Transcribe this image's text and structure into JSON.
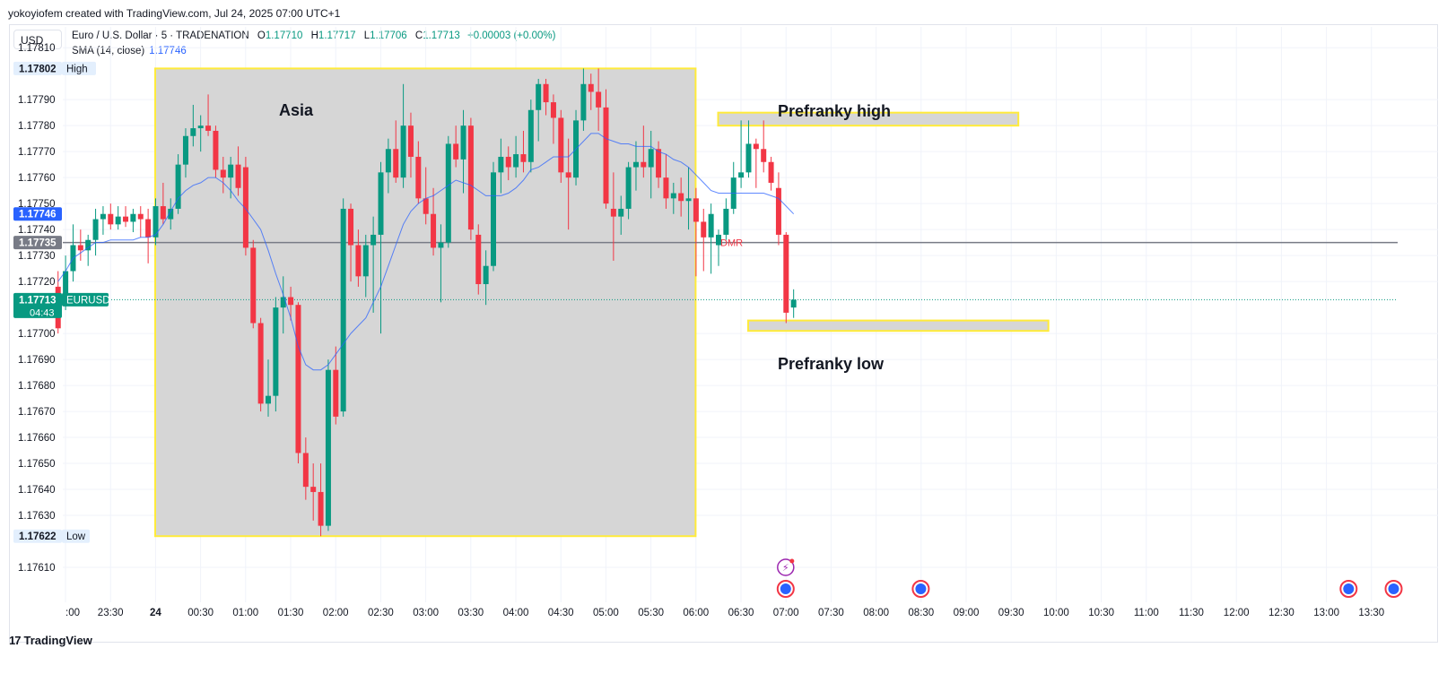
{
  "header": {
    "credit": "yokoyiofem created with TradingView.com, Jul 24, 2025 07:00 UTC+1"
  },
  "currency_button": "USD",
  "legend": {
    "title": "Euro / U.S. Dollar · 5 · TRADENATION",
    "o_label": "O",
    "o_val": "1.17710",
    "h_label": "H",
    "h_val": "1.17717",
    "l_label": "L",
    "l_val": "1.17706",
    "c_label": "C",
    "c_val": "1.17713",
    "change": "+0.00003 (+0.00%)",
    "sma_label": "SMA (14, close)",
    "sma_val": "1.17746"
  },
  "footer": {
    "brand": "TradingView",
    "mark": "17"
  },
  "colors": {
    "up": "#089981",
    "down": "#f23645",
    "sma": "#2962ff",
    "zone_fill": "#d6d6d6",
    "zone_border": "#ffeb3b",
    "hline": "#787b86",
    "price_tag": "#089981",
    "sma_tag": "#2962ff",
    "hline_tag": "#787b86"
  },
  "chart_data": {
    "type": "candlestick",
    "symbol": "EURUSD",
    "interval": "5",
    "y_ticks": [
      "1.17810",
      "1.17790",
      "1.17780",
      "1.17770",
      "1.17760",
      "1.17750",
      "1.17740",
      "1.17730",
      "1.17720",
      "1.17700",
      "1.17690",
      "1.17680",
      "1.17670",
      "1.17660",
      "1.17650",
      "1.17640",
      "1.17630",
      "1.17610"
    ],
    "y_range": [
      1.176,
      1.17818
    ],
    "x_ticks": [
      ":00",
      "23:30",
      "24",
      "00:30",
      "01:00",
      "01:30",
      "02:00",
      "02:30",
      "03:00",
      "03:30",
      "04:00",
      "04:30",
      "05:00",
      "05:30",
      "06:00",
      "06:30",
      "07:00",
      "07:30",
      "08:00",
      "08:30",
      "09:00",
      "09:30",
      "10:00",
      "10:30",
      "11:00",
      "11:30",
      "12:00",
      "12:30",
      "13:00",
      "13:30"
    ],
    "x_tick_bold": "24",
    "candles": [
      {
        "t": "22:55",
        "o": 1.17718,
        "h": 1.17724,
        "l": 1.177,
        "c": 1.17702
      },
      {
        "t": "23:00",
        "o": 1.17714,
        "h": 1.1773,
        "l": 1.17709,
        "c": 1.17724
      },
      {
        "t": "23:05",
        "o": 1.17724,
        "h": 1.17742,
        "l": 1.1772,
        "c": 1.17734
      },
      {
        "t": "23:10",
        "o": 1.17734,
        "h": 1.1774,
        "l": 1.17728,
        "c": 1.17732
      },
      {
        "t": "23:15",
        "o": 1.17732,
        "h": 1.17738,
        "l": 1.17726,
        "c": 1.17736
      },
      {
        "t": "23:20",
        "o": 1.17736,
        "h": 1.17748,
        "l": 1.1773,
        "c": 1.17744
      },
      {
        "t": "23:25",
        "o": 1.17744,
        "h": 1.17749,
        "l": 1.17738,
        "c": 1.17746
      },
      {
        "t": "23:30",
        "o": 1.17746,
        "h": 1.1775,
        "l": 1.1774,
        "c": 1.17742
      },
      {
        "t": "23:35",
        "o": 1.17742,
        "h": 1.17749,
        "l": 1.1774,
        "c": 1.17745
      },
      {
        "t": "23:40",
        "o": 1.17745,
        "h": 1.17749,
        "l": 1.17741,
        "c": 1.17743
      },
      {
        "t": "23:45",
        "o": 1.17743,
        "h": 1.17748,
        "l": 1.17739,
        "c": 1.17746
      },
      {
        "t": "23:50",
        "o": 1.17746,
        "h": 1.17749,
        "l": 1.17737,
        "c": 1.17744
      },
      {
        "t": "23:55",
        "o": 1.17744,
        "h": 1.17748,
        "l": 1.17727,
        "c": 1.17737
      },
      {
        "t": "00:00",
        "o": 1.17737,
        "h": 1.17752,
        "l": 1.17734,
        "c": 1.17749
      },
      {
        "t": "00:05",
        "o": 1.17749,
        "h": 1.17758,
        "l": 1.17742,
        "c": 1.17744
      },
      {
        "t": "00:10",
        "o": 1.17744,
        "h": 1.17752,
        "l": 1.1774,
        "c": 1.17748
      },
      {
        "t": "00:15",
        "o": 1.17748,
        "h": 1.17769,
        "l": 1.17746,
        "c": 1.17765
      },
      {
        "t": "00:20",
        "o": 1.17765,
        "h": 1.17779,
        "l": 1.1776,
        "c": 1.17776
      },
      {
        "t": "00:25",
        "o": 1.17776,
        "h": 1.17788,
        "l": 1.17772,
        "c": 1.17779
      },
      {
        "t": "00:30",
        "o": 1.17779,
        "h": 1.17784,
        "l": 1.1777,
        "c": 1.1778
      },
      {
        "t": "00:35",
        "o": 1.1778,
        "h": 1.17792,
        "l": 1.17776,
        "c": 1.17778
      },
      {
        "t": "00:40",
        "o": 1.17778,
        "h": 1.1778,
        "l": 1.1776,
        "c": 1.17763
      },
      {
        "t": "00:45",
        "o": 1.17763,
        "h": 1.17768,
        "l": 1.17754,
        "c": 1.1776
      },
      {
        "t": "00:50",
        "o": 1.1776,
        "h": 1.17768,
        "l": 1.17752,
        "c": 1.17765
      },
      {
        "t": "00:55",
        "o": 1.17765,
        "h": 1.17772,
        "l": 1.17753,
        "c": 1.17756
      },
      {
        "t": "01:00",
        "o": 1.17764,
        "h": 1.17768,
        "l": 1.1773,
        "c": 1.17733
      },
      {
        "t": "01:05",
        "o": 1.17733,
        "h": 1.17736,
        "l": 1.17702,
        "c": 1.17704
      },
      {
        "t": "01:10",
        "o": 1.17704,
        "h": 1.17706,
        "l": 1.1767,
        "c": 1.17673
      },
      {
        "t": "01:15",
        "o": 1.17673,
        "h": 1.1769,
        "l": 1.17668,
        "c": 1.17676
      },
      {
        "t": "01:20",
        "o": 1.17676,
        "h": 1.17714,
        "l": 1.1767,
        "c": 1.1771
      },
      {
        "t": "01:25",
        "o": 1.1771,
        "h": 1.17722,
        "l": 1.177,
        "c": 1.17714
      },
      {
        "t": "01:30",
        "o": 1.17714,
        "h": 1.17718,
        "l": 1.17705,
        "c": 1.17711
      },
      {
        "t": "01:35",
        "o": 1.17711,
        "h": 1.17712,
        "l": 1.1765,
        "c": 1.17654
      },
      {
        "t": "01:40",
        "o": 1.17654,
        "h": 1.1766,
        "l": 1.17636,
        "c": 1.17641
      },
      {
        "t": "01:45",
        "o": 1.17641,
        "h": 1.1765,
        "l": 1.17628,
        "c": 1.17639
      },
      {
        "t": "01:50",
        "o": 1.17639,
        "h": 1.1765,
        "l": 1.17622,
        "c": 1.17626
      },
      {
        "t": "01:55",
        "o": 1.17626,
        "h": 1.1769,
        "l": 1.17624,
        "c": 1.17686
      },
      {
        "t": "02:00",
        "o": 1.17686,
        "h": 1.17695,
        "l": 1.17665,
        "c": 1.17668
      },
      {
        "t": "02:05",
        "o": 1.1767,
        "h": 1.17752,
        "l": 1.17668,
        "c": 1.17748
      },
      {
        "t": "02:10",
        "o": 1.17748,
        "h": 1.1775,
        "l": 1.1772,
        "c": 1.17734
      },
      {
        "t": "02:15",
        "o": 1.17734,
        "h": 1.1774,
        "l": 1.17718,
        "c": 1.17722
      },
      {
        "t": "02:20",
        "o": 1.17722,
        "h": 1.17738,
        "l": 1.17714,
        "c": 1.17734
      },
      {
        "t": "02:25",
        "o": 1.17734,
        "h": 1.17745,
        "l": 1.17708,
        "c": 1.17738
      },
      {
        "t": "02:30",
        "o": 1.17738,
        "h": 1.17766,
        "l": 1.177,
        "c": 1.17762
      },
      {
        "t": "02:35",
        "o": 1.17762,
        "h": 1.17775,
        "l": 1.17754,
        "c": 1.17771
      },
      {
        "t": "02:40",
        "o": 1.17771,
        "h": 1.17782,
        "l": 1.17758,
        "c": 1.1776
      },
      {
        "t": "02:45",
        "o": 1.1776,
        "h": 1.17796,
        "l": 1.17756,
        "c": 1.1778
      },
      {
        "t": "02:50",
        "o": 1.1778,
        "h": 1.17785,
        "l": 1.1776,
        "c": 1.17768
      },
      {
        "t": "02:55",
        "o": 1.17768,
        "h": 1.17774,
        "l": 1.1775,
        "c": 1.17752
      },
      {
        "t": "03:00",
        "o": 1.17752,
        "h": 1.17764,
        "l": 1.17742,
        "c": 1.17746
      },
      {
        "t": "03:05",
        "o": 1.17746,
        "h": 1.17756,
        "l": 1.1773,
        "c": 1.17733
      },
      {
        "t": "03:10",
        "o": 1.17733,
        "h": 1.17742,
        "l": 1.17712,
        "c": 1.17735
      },
      {
        "t": "03:15",
        "o": 1.17735,
        "h": 1.17776,
        "l": 1.17733,
        "c": 1.17773
      },
      {
        "t": "03:20",
        "o": 1.17773,
        "h": 1.1778,
        "l": 1.17764,
        "c": 1.17767
      },
      {
        "t": "03:25",
        "o": 1.17767,
        "h": 1.17786,
        "l": 1.17754,
        "c": 1.1778
      },
      {
        "t": "03:30",
        "o": 1.1778,
        "h": 1.17783,
        "l": 1.17736,
        "c": 1.1774
      },
      {
        "t": "03:35",
        "o": 1.17738,
        "h": 1.17742,
        "l": 1.17715,
        "c": 1.17719
      },
      {
        "t": "03:40",
        "o": 1.17719,
        "h": 1.17732,
        "l": 1.17711,
        "c": 1.17726
      },
      {
        "t": "03:45",
        "o": 1.17726,
        "h": 1.17766,
        "l": 1.17724,
        "c": 1.17762
      },
      {
        "t": "03:50",
        "o": 1.17762,
        "h": 1.17775,
        "l": 1.17754,
        "c": 1.17768
      },
      {
        "t": "03:55",
        "o": 1.17768,
        "h": 1.17772,
        "l": 1.17759,
        "c": 1.17764
      },
      {
        "t": "04:00",
        "o": 1.17764,
        "h": 1.17776,
        "l": 1.1776,
        "c": 1.17769
      },
      {
        "t": "04:05",
        "o": 1.17769,
        "h": 1.17778,
        "l": 1.17762,
        "c": 1.17766
      },
      {
        "t": "04:10",
        "o": 1.17766,
        "h": 1.1779,
        "l": 1.17762,
        "c": 1.17786
      },
      {
        "t": "04:15",
        "o": 1.17786,
        "h": 1.17798,
        "l": 1.17774,
        "c": 1.17796
      },
      {
        "t": "04:20",
        "o": 1.17796,
        "h": 1.17798,
        "l": 1.17784,
        "c": 1.17789
      },
      {
        "t": "04:25",
        "o": 1.17789,
        "h": 1.17792,
        "l": 1.17773,
        "c": 1.17783
      },
      {
        "t": "04:30",
        "o": 1.17783,
        "h": 1.17786,
        "l": 1.17758,
        "c": 1.17762
      },
      {
        "t": "04:35",
        "o": 1.17762,
        "h": 1.17775,
        "l": 1.1774,
        "c": 1.1776
      },
      {
        "t": "04:40",
        "o": 1.1776,
        "h": 1.17786,
        "l": 1.17757,
        "c": 1.17782
      },
      {
        "t": "04:45",
        "o": 1.17782,
        "h": 1.17802,
        "l": 1.17778,
        "c": 1.17796
      },
      {
        "t": "04:50",
        "o": 1.17796,
        "h": 1.178,
        "l": 1.17786,
        "c": 1.17793
      },
      {
        "t": "04:55",
        "o": 1.17793,
        "h": 1.17802,
        "l": 1.17778,
        "c": 1.17787
      },
      {
        "t": "05:00",
        "o": 1.17787,
        "h": 1.17794,
        "l": 1.17748,
        "c": 1.1775
      },
      {
        "t": "05:05",
        "o": 1.17748,
        "h": 1.17762,
        "l": 1.17728,
        "c": 1.17745
      },
      {
        "t": "05:10",
        "o": 1.17745,
        "h": 1.17753,
        "l": 1.17738,
        "c": 1.17748
      },
      {
        "t": "05:15",
        "o": 1.17748,
        "h": 1.17766,
        "l": 1.17744,
        "c": 1.17764
      },
      {
        "t": "05:20",
        "o": 1.17764,
        "h": 1.17774,
        "l": 1.17755,
        "c": 1.17766
      },
      {
        "t": "05:25",
        "o": 1.17766,
        "h": 1.1778,
        "l": 1.1776,
        "c": 1.17764
      },
      {
        "t": "05:30",
        "o": 1.17764,
        "h": 1.17778,
        "l": 1.17752,
        "c": 1.17771
      },
      {
        "t": "05:35",
        "o": 1.17771,
        "h": 1.17774,
        "l": 1.17756,
        "c": 1.1776
      },
      {
        "t": "05:40",
        "o": 1.1776,
        "h": 1.17769,
        "l": 1.17748,
        "c": 1.17752
      },
      {
        "t": "05:45",
        "o": 1.17752,
        "h": 1.17758,
        "l": 1.17746,
        "c": 1.17754
      },
      {
        "t": "05:50",
        "o": 1.17754,
        "h": 1.1776,
        "l": 1.17745,
        "c": 1.17751
      },
      {
        "t": "05:55",
        "o": 1.17751,
        "h": 1.17764,
        "l": 1.1774,
        "c": 1.17752
      },
      {
        "t": "06:00",
        "o": 1.17752,
        "h": 1.17756,
        "l": 1.17722,
        "c": 1.17743
      },
      {
        "t": "06:05",
        "o": 1.17743,
        "h": 1.17748,
        "l": 1.17724,
        "c": 1.17737
      },
      {
        "t": "06:10",
        "o": 1.17737,
        "h": 1.1775,
        "l": 1.17723,
        "c": 1.17746
      },
      {
        "t": "06:15",
        "o": 1.17734,
        "h": 1.1774,
        "l": 1.17726,
        "c": 1.17738
      },
      {
        "t": "06:20",
        "o": 1.17738,
        "h": 1.17752,
        "l": 1.17736,
        "c": 1.17748
      },
      {
        "t": "06:25",
        "o": 1.17748,
        "h": 1.17766,
        "l": 1.17746,
        "c": 1.1776
      },
      {
        "t": "06:30",
        "o": 1.1776,
        "h": 1.17782,
        "l": 1.17756,
        "c": 1.17762
      },
      {
        "t": "06:35",
        "o": 1.17762,
        "h": 1.17782,
        "l": 1.1776,
        "c": 1.17773
      },
      {
        "t": "06:40",
        "o": 1.17773,
        "h": 1.17775,
        "l": 1.17756,
        "c": 1.17771
      },
      {
        "t": "06:45",
        "o": 1.17771,
        "h": 1.17782,
        "l": 1.17762,
        "c": 1.17766
      },
      {
        "t": "06:50",
        "o": 1.17766,
        "h": 1.17768,
        "l": 1.17755,
        "c": 1.17758
      },
      {
        "t": "06:55",
        "o": 1.17756,
        "h": 1.17762,
        "l": 1.17734,
        "c": 1.17738
      },
      {
        "t": "07:00",
        "o": 1.17738,
        "h": 1.17739,
        "l": 1.17704,
        "c": 1.17708
      },
      {
        "t": "07:05",
        "o": 1.1771,
        "h": 1.17717,
        "l": 1.17706,
        "c": 1.17713
      }
    ],
    "sma": {
      "name": "SMA (14, close)",
      "values": [
        1.1772,
        1.17724,
        1.17729,
        1.17731,
        1.17733,
        1.17735,
        1.17735,
        1.17736,
        1.17736,
        1.17736,
        1.17736,
        1.17737,
        1.17737,
        1.17738,
        1.17742,
        1.17747,
        1.17752,
        1.17755,
        1.17757,
        1.17758,
        1.1776,
        1.1776,
        1.17758,
        1.17755,
        1.17751,
        1.17748,
        1.17744,
        1.1774,
        1.17732,
        1.17723,
        1.17715,
        1.17706,
        1.17695,
        1.17688,
        1.17686,
        1.17686,
        1.17688,
        1.17692,
        1.17696,
        1.177,
        1.17703,
        1.17706,
        1.17712,
        1.17718,
        1.17726,
        1.17734,
        1.17742,
        1.17747,
        1.1775,
        1.17752,
        1.17753,
        1.17755,
        1.17757,
        1.17759,
        1.17758,
        1.17757,
        1.17755,
        1.17753,
        1.17753,
        1.17753,
        1.17754,
        1.17756,
        1.17759,
        1.17763,
        1.17764,
        1.17766,
        1.17768,
        1.17768,
        1.17768,
        1.17771,
        1.17774,
        1.17777,
        1.17777,
        1.17775,
        1.17774,
        1.17773,
        1.17773,
        1.17772,
        1.17772,
        1.17772,
        1.1777,
        1.17769,
        1.17767,
        1.17766,
        1.17764,
        1.17761,
        1.17758,
        1.17755,
        1.17754,
        1.17754,
        1.17754,
        1.17754,
        1.17754,
        1.17754,
        1.17754,
        1.17753,
        1.17752,
        1.17749,
        1.17746
      ]
    },
    "zones": [
      {
        "label": "Asia",
        "from": "00:00",
        "to": "06:00",
        "top": 1.17802,
        "bottom": 1.17622
      },
      {
        "label": "Prefranky high",
        "from": "06:15",
        "to": "09:35",
        "top": 1.17785,
        "bottom": 1.1778
      },
      {
        "label": "Prefranky low",
        "from": "06:35",
        "to": "09:55",
        "top": 1.17705,
        "bottom": 1.17701
      }
    ],
    "hline": {
      "label": "DMR",
      "value": 1.17735
    },
    "price_tags": {
      "high": {
        "value": "1.17802",
        "label": "High"
      },
      "low": {
        "value": "1.17622",
        "label": "Low"
      },
      "sma": {
        "value": "1.17746"
      },
      "hline": {
        "value": "1.17735"
      },
      "last": {
        "value": "1.17713",
        "label": "EURUSD",
        "countdown": "04:43"
      }
    },
    "event_markers": [
      "07:00",
      "08:30",
      "13:15",
      "13:45"
    ],
    "grid": true
  }
}
